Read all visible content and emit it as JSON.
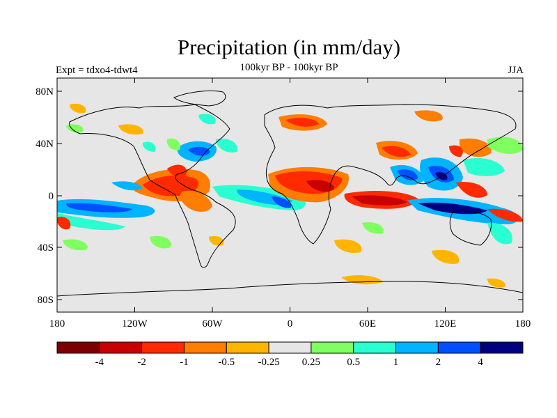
{
  "header": {
    "title": "Precipitation (in mm/day)",
    "subtitle_left": "Expt = tdxo4-tdwt4",
    "subtitle_center": "100kyr BP - 100kyr BP",
    "subtitle_right": "JJA"
  },
  "map": {
    "projection": "cylindrical equidistant",
    "lat_ticks": [
      "80N",
      "40N",
      "0",
      "40S",
      "80S"
    ],
    "lon_ticks": [
      "180",
      "120W",
      "60W",
      "0",
      "60E",
      "120E",
      "180"
    ],
    "background_color": "#e6e6e6"
  },
  "colorbar": {
    "colors": [
      "#7d0000",
      "#c80000",
      "#ff2a00",
      "#ff7d00",
      "#ffb400",
      "#e6e6e6",
      "#80ff60",
      "#2affd2",
      "#00b4ff",
      "#0050ff",
      "#000080"
    ],
    "labels": [
      "-4",
      "-2",
      "-1",
      "-0.5",
      "-0.25",
      "0.25",
      "0.5",
      "1",
      "2",
      "4"
    ]
  }
}
